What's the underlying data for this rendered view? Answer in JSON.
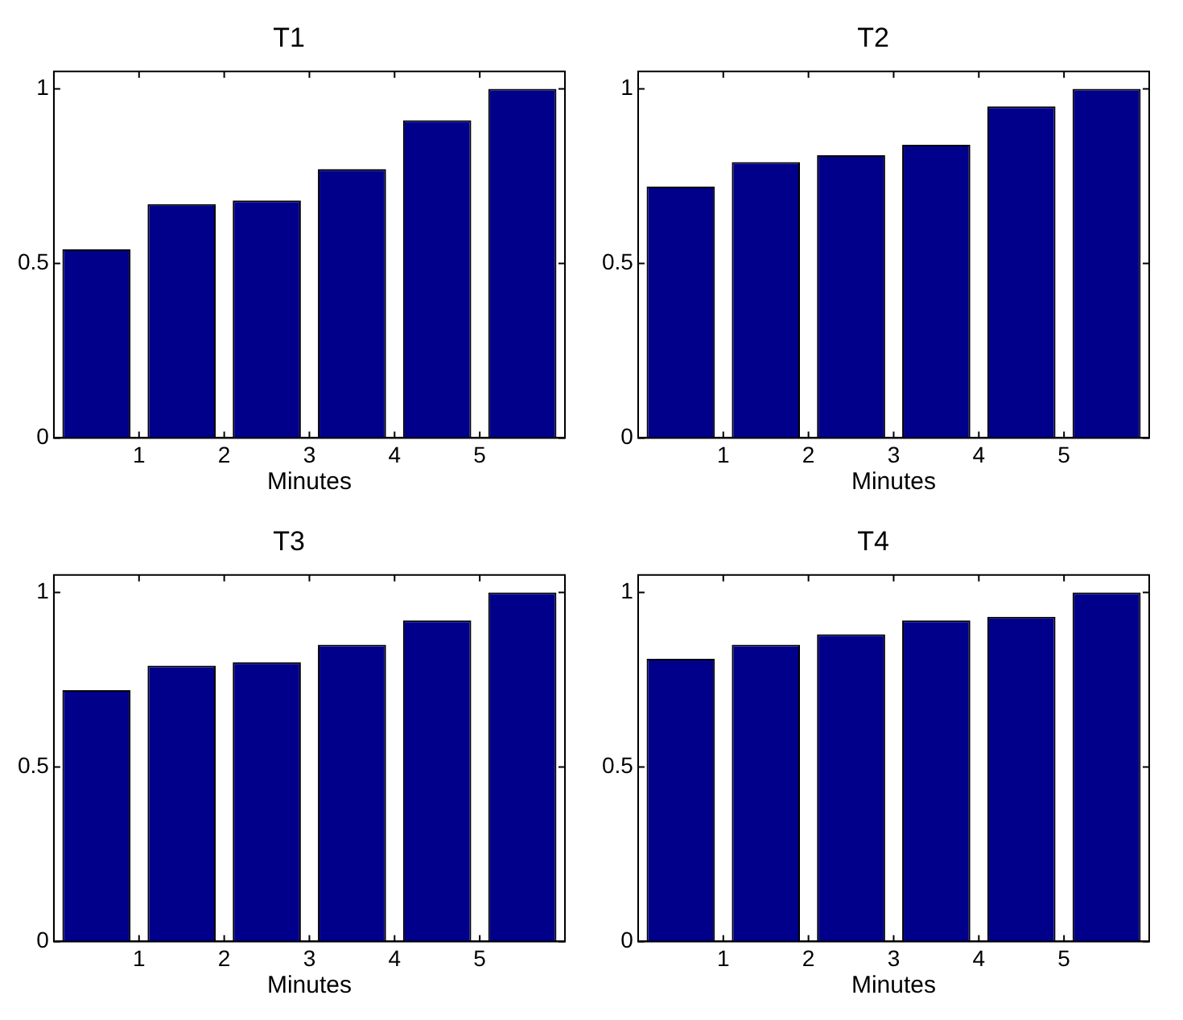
{
  "chart_data": [
    {
      "type": "bar",
      "title": "T1",
      "xlabel": "Minutes",
      "x": [
        0.5,
        1.5,
        2.5,
        3.5,
        4.5,
        5.5
      ],
      "values": [
        0.54,
        0.67,
        0.68,
        0.77,
        0.91,
        1.0
      ],
      "color": "#00008b",
      "xlim": [
        0,
        6
      ],
      "xticks": [
        1,
        2,
        3,
        4,
        5
      ],
      "ylim": [
        0,
        1.05
      ],
      "yticks": [
        0,
        0.5,
        1
      ],
      "grid": false
    },
    {
      "type": "bar",
      "title": "T2",
      "xlabel": "Minutes",
      "x": [
        0.5,
        1.5,
        2.5,
        3.5,
        4.5,
        5.5
      ],
      "values": [
        0.72,
        0.79,
        0.81,
        0.84,
        0.95,
        1.0
      ],
      "color": "#00008b",
      "xlim": [
        0,
        6
      ],
      "xticks": [
        1,
        2,
        3,
        4,
        5
      ],
      "ylim": [
        0,
        1.05
      ],
      "yticks": [
        0,
        0.5,
        1
      ],
      "grid": false
    },
    {
      "type": "bar",
      "title": "T3",
      "xlabel": "Minutes",
      "x": [
        0.5,
        1.5,
        2.5,
        3.5,
        4.5,
        5.5
      ],
      "values": [
        0.72,
        0.79,
        0.8,
        0.85,
        0.92,
        1.0
      ],
      "color": "#00008b",
      "xlim": [
        0,
        6
      ],
      "xticks": [
        1,
        2,
        3,
        4,
        5
      ],
      "ylim": [
        0,
        1.05
      ],
      "yticks": [
        0,
        0.5,
        1
      ],
      "grid": false
    },
    {
      "type": "bar",
      "title": "T4",
      "xlabel": "Minutes",
      "x": [
        0.5,
        1.5,
        2.5,
        3.5,
        4.5,
        5.5
      ],
      "values": [
        0.81,
        0.85,
        0.88,
        0.92,
        0.93,
        1.0
      ],
      "color": "#00008b",
      "xlim": [
        0,
        6
      ],
      "xticks": [
        1,
        2,
        3,
        4,
        5
      ],
      "ylim": [
        0,
        1.05
      ],
      "yticks": [
        0,
        0.5,
        1
      ],
      "grid": false
    }
  ]
}
